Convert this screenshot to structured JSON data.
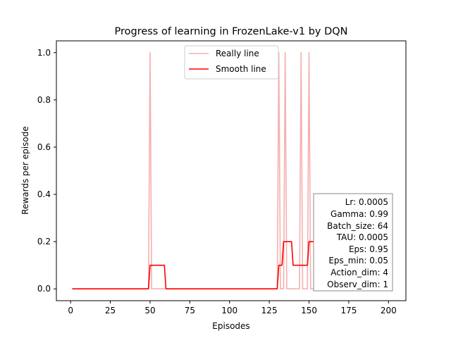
{
  "chart_data": {
    "type": "line",
    "title": "Progress of learning in FrozenLake-v1 by DQN",
    "xlabel": "Episodes",
    "ylabel": "Rewards per episode",
    "xlim": [
      -8.95,
      210.95
    ],
    "ylim": [
      -0.05,
      1.05
    ],
    "xticks": [
      0,
      25,
      50,
      75,
      100,
      125,
      150,
      175,
      200
    ],
    "yticks": [
      0.0,
      0.2,
      0.4,
      0.6,
      0.8,
      1.0
    ],
    "xtick_labels": [
      "0",
      "25",
      "50",
      "75",
      "100",
      "125",
      "150",
      "175",
      "200"
    ],
    "ytick_labels": [
      "0.0",
      "0.2",
      "0.4",
      "0.6",
      "0.8",
      "1.0"
    ],
    "grid": false,
    "legend_position": "top-center",
    "series": [
      {
        "name": "Really line",
        "color": "#f4b0b0",
        "points": [
          [
            1,
            0
          ],
          [
            49,
            0
          ],
          [
            50,
            1
          ],
          [
            51,
            0
          ],
          [
            130,
            0
          ],
          [
            131,
            1
          ],
          [
            132,
            0
          ],
          [
            134,
            0
          ],
          [
            135,
            1
          ],
          [
            136,
            0
          ],
          [
            144,
            0
          ],
          [
            145,
            1
          ],
          [
            146,
            0
          ],
          [
            149,
            0
          ],
          [
            150,
            1
          ],
          [
            151,
            0
          ],
          [
            201,
            0
          ]
        ]
      },
      {
        "name": "Smooth line",
        "color": "#ff0000",
        "points": [
          [
            1,
            0
          ],
          [
            49,
            0
          ],
          [
            50,
            0.1
          ],
          [
            59,
            0.1
          ],
          [
            60,
            0
          ],
          [
            130,
            0
          ],
          [
            131,
            0.1
          ],
          [
            133,
            0.1
          ],
          [
            134,
            0.2
          ],
          [
            139,
            0.2
          ],
          [
            140,
            0.1
          ],
          [
            148,
            0.1
          ],
          [
            149,
            0.1
          ],
          [
            150,
            0.2
          ],
          [
            154,
            0.2
          ],
          [
            155,
            0.1
          ],
          [
            159,
            0.1
          ],
          [
            160,
            0
          ],
          [
            201,
            0
          ]
        ]
      }
    ],
    "info_box": [
      "Lr: 0.0005",
      "Gamma: 0.99",
      "Batch_size: 64",
      "TAU: 0.0005",
      "Eps: 0.95",
      "Eps_min: 0.05",
      "Action_dim: 4",
      "Observ_dim: 1"
    ]
  }
}
